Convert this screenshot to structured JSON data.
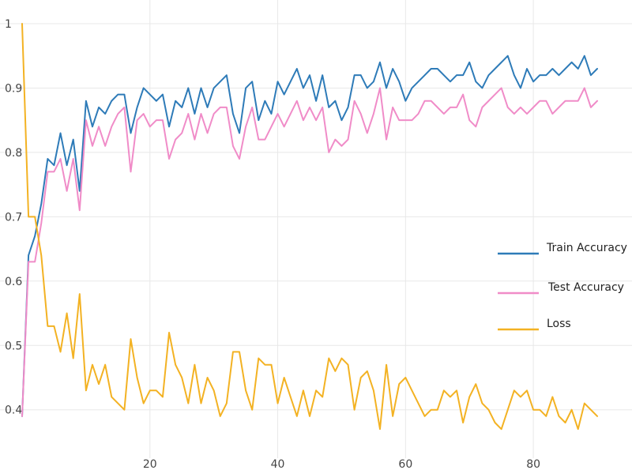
{
  "chart_data": {
    "type": "line",
    "title": "",
    "xlabel": "",
    "ylabel": "",
    "xlim": [
      0,
      90
    ],
    "ylim": [
      0.38,
      1.0
    ],
    "x_ticks": [
      20,
      40,
      60,
      80
    ],
    "y_ticks": [
      0.4,
      0.5,
      0.6,
      0.7,
      0.8,
      0.9,
      1
    ],
    "grid": true,
    "legend_position": "right",
    "series": [
      {
        "name": "Train Accuracy",
        "color": "#2e7bb8",
        "values": [
          0.39,
          0.64,
          0.67,
          0.72,
          0.79,
          0.78,
          0.83,
          0.78,
          0.82,
          0.74,
          0.88,
          0.84,
          0.87,
          0.86,
          0.88,
          0.89,
          0.89,
          0.83,
          0.87,
          0.9,
          0.89,
          0.88,
          0.89,
          0.84,
          0.88,
          0.87,
          0.9,
          0.86,
          0.9,
          0.87,
          0.9,
          0.91,
          0.92,
          0.86,
          0.83,
          0.9,
          0.91,
          0.85,
          0.88,
          0.86,
          0.91,
          0.89,
          0.91,
          0.93,
          0.9,
          0.92,
          0.88,
          0.92,
          0.87,
          0.88,
          0.85,
          0.87,
          0.92,
          0.92,
          0.9,
          0.91,
          0.94,
          0.9,
          0.93,
          0.91,
          0.88,
          0.9,
          0.91,
          0.92,
          0.93,
          0.93,
          0.92,
          0.91,
          0.92,
          0.92,
          0.94,
          0.91,
          0.9,
          0.92,
          0.93,
          0.94,
          0.95,
          0.92,
          0.9,
          0.93,
          0.91,
          0.92,
          0.92,
          0.93,
          0.92,
          0.93,
          0.94,
          0.93,
          0.95,
          0.92,
          0.93
        ]
      },
      {
        "name": "Test Accuracy",
        "color": "#f08cc8",
        "values": [
          0.39,
          0.63,
          0.63,
          0.69,
          0.77,
          0.77,
          0.79,
          0.74,
          0.79,
          0.71,
          0.85,
          0.81,
          0.84,
          0.81,
          0.84,
          0.86,
          0.87,
          0.77,
          0.85,
          0.86,
          0.84,
          0.85,
          0.85,
          0.79,
          0.82,
          0.83,
          0.86,
          0.82,
          0.86,
          0.83,
          0.86,
          0.87,
          0.87,
          0.81,
          0.79,
          0.84,
          0.87,
          0.82,
          0.82,
          0.84,
          0.86,
          0.84,
          0.86,
          0.88,
          0.85,
          0.87,
          0.85,
          0.87,
          0.8,
          0.82,
          0.81,
          0.82,
          0.88,
          0.86,
          0.83,
          0.86,
          0.9,
          0.82,
          0.87,
          0.85,
          0.85,
          0.85,
          0.86,
          0.88,
          0.88,
          0.87,
          0.86,
          0.87,
          0.87,
          0.89,
          0.85,
          0.84,
          0.87,
          0.88,
          0.89,
          0.9,
          0.87,
          0.86,
          0.87,
          0.86,
          0.87,
          0.88,
          0.88,
          0.86,
          0.87,
          0.88,
          0.88,
          0.88,
          0.9,
          0.87,
          0.88
        ]
      },
      {
        "name": "Loss",
        "color": "#f3b223",
        "values": [
          1.0,
          0.7,
          0.7,
          0.64,
          0.53,
          0.53,
          0.49,
          0.55,
          0.48,
          0.58,
          0.43,
          0.47,
          0.44,
          0.47,
          0.42,
          0.41,
          0.4,
          0.51,
          0.45,
          0.41,
          0.43,
          0.43,
          0.42,
          0.52,
          0.47,
          0.45,
          0.41,
          0.47,
          0.41,
          0.45,
          0.43,
          0.39,
          0.41,
          0.49,
          0.49,
          0.43,
          0.4,
          0.48,
          0.47,
          0.47,
          0.41,
          0.45,
          0.42,
          0.39,
          0.43,
          0.39,
          0.43,
          0.42,
          0.48,
          0.46,
          0.48,
          0.47,
          0.4,
          0.45,
          0.46,
          0.43,
          0.37,
          0.47,
          0.39,
          0.44,
          0.45,
          0.43,
          0.41,
          0.39,
          0.4,
          0.4,
          0.43,
          0.42,
          0.43,
          0.38,
          0.42,
          0.44,
          0.41,
          0.4,
          0.38,
          0.37,
          0.4,
          0.43,
          0.42,
          0.43,
          0.4,
          0.4,
          0.39,
          0.42,
          0.39,
          0.38,
          0.4,
          0.37,
          0.41,
          0.4,
          0.39
        ]
      }
    ]
  }
}
